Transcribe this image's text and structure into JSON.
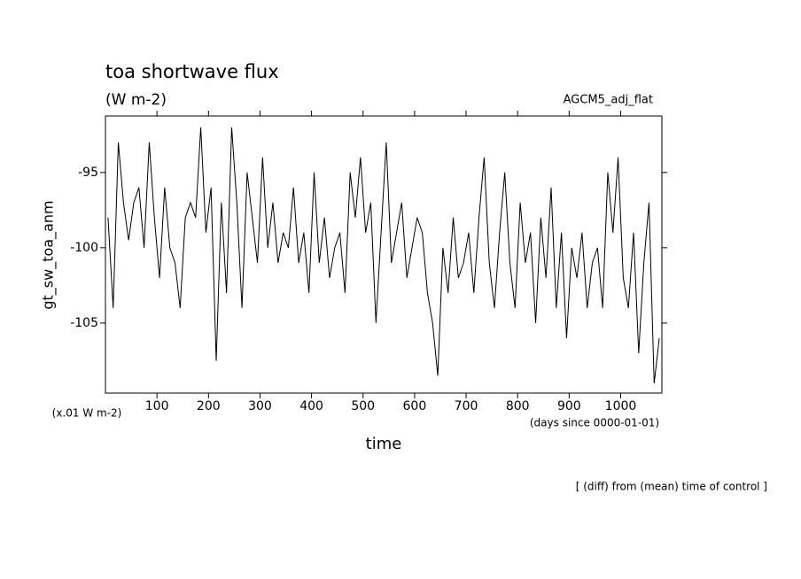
{
  "chart_data": {
    "type": "line",
    "title": "toa shortwave flux",
    "subtitle": "(W m-2)",
    "annotation": "AGCM5_adj_flat",
    "y_label": "gt_sw_toa_anm",
    "y_units": "(x.01 W m-2)",
    "x_units": "(days since 0000-01-01)",
    "x_label": "time",
    "footnote": "[ (diff) from (mean) time of control ]",
    "xlim": [
      0,
      1080
    ],
    "xticks": [
      100,
      200,
      300,
      400,
      500,
      600,
      700,
      800,
      900,
      1000
    ],
    "ylim": [
      -109.65,
      -91.25
    ],
    "yticks": [
      -105,
      -100,
      -95
    ],
    "x": [
      5,
      15,
      25,
      35,
      45,
      55,
      65,
      75,
      85,
      95,
      105,
      115,
      125,
      135,
      145,
      155,
      165,
      175,
      185,
      195,
      205,
      215,
      225,
      235,
      245,
      255,
      265,
      275,
      285,
      295,
      305,
      315,
      325,
      335,
      345,
      355,
      365,
      375,
      385,
      395,
      405,
      415,
      425,
      435,
      445,
      455,
      465,
      475,
      485,
      495,
      505,
      515,
      525,
      535,
      545,
      555,
      565,
      575,
      585,
      595,
      605,
      615,
      625,
      635,
      645,
      655,
      665,
      675,
      685,
      695,
      705,
      715,
      725,
      735,
      745,
      755,
      765,
      775,
      785,
      795,
      805,
      815,
      825,
      835,
      845,
      855,
      865,
      875,
      885,
      895,
      905,
      915,
      925,
      935,
      945,
      955,
      965,
      975,
      985,
      995,
      1005,
      1015,
      1025,
      1035,
      1045,
      1055,
      1065,
      1075
    ],
    "series": [
      {
        "color": "#000000",
        "values": [
          -98,
          -104,
          -93,
          -97,
          -99.5,
          -97,
          -96,
          -100,
          -93,
          -98,
          -102,
          -96,
          -100,
          -101,
          -104,
          -98,
          -97,
          -98,
          -92,
          -99,
          -96,
          -107.5,
          -97,
          -103,
          -92,
          -97,
          -104,
          -95,
          -98,
          -101,
          -94,
          -100,
          -97,
          -101,
          -99,
          -100,
          -96,
          -101,
          -99,
          -103,
          -95,
          -101,
          -98,
          -102,
          -100,
          -99,
          -103,
          -95,
          -98,
          -94,
          -99,
          -97,
          -105,
          -99,
          -93,
          -101,
          -99,
          -97,
          -102,
          -100,
          -98,
          -99,
          -103,
          -105,
          -108.5,
          -100,
          -103,
          -98,
          -102,
          -101,
          -99,
          -103,
          -98,
          -94,
          -101,
          -104,
          -99,
          -95,
          -101,
          -104,
          -97,
          -101,
          -99,
          -105,
          -98,
          -102,
          -96,
          -104,
          -99,
          -106,
          -100,
          -102,
          -99,
          -104,
          -101,
          -100,
          -104,
          -95,
          -99,
          -94,
          -102,
          -104,
          -99,
          -107,
          -101,
          -97,
          -109,
          -106
        ]
      }
    ]
  }
}
